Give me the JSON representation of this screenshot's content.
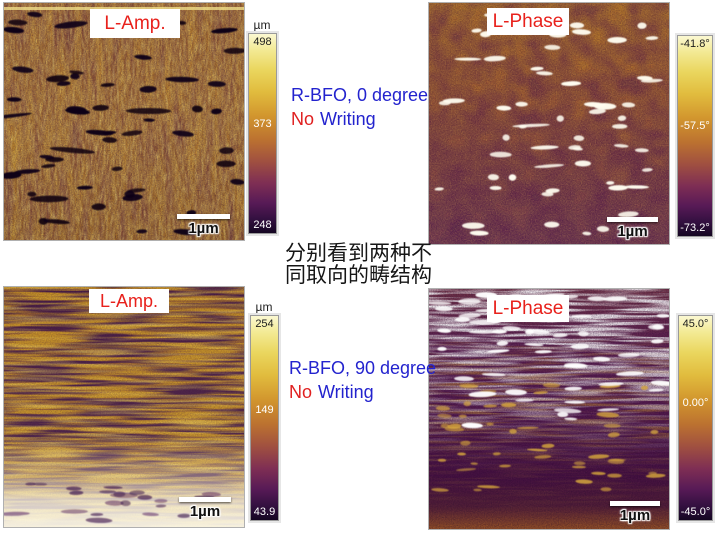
{
  "figure": {
    "background": "#ffffff"
  },
  "colors": {
    "label_red": "#E8211C",
    "annotation_blue": "#2323CE",
    "annotation_red": "#E02020",
    "text_black": "#161616"
  },
  "panels": [
    {
      "label": "L-Amp.",
      "scale_bar": "1µm",
      "colorbar": {
        "unit": "µm",
        "max": "498",
        "mid": "373",
        "min": "248"
      }
    },
    {
      "label": "L-Phase",
      "scale_bar": "1µm",
      "colorbar": {
        "max": "-41.8°",
        "mid": "-57.5°",
        "min": "-73.2°"
      }
    },
    {
      "label": "L-Amp.",
      "scale_bar": "1µm",
      "colorbar": {
        "unit": "µm",
        "max": "254",
        "mid": "149",
        "min": "43.9"
      }
    },
    {
      "label": "L-Phase",
      "scale_bar": "1µm",
      "colorbar": {
        "max": "45.0°",
        "mid": "0.00°",
        "min": "-45.0°"
      }
    }
  ],
  "annotations": {
    "top": {
      "line1": "R-BFO, 0 degree",
      "no": "No",
      "writing": "Writing"
    },
    "center_cn": {
      "line1": "分别看到两种不",
      "line2": "同取向的畴结构"
    },
    "bottom": {
      "line1": "R-BFO, 90 degree",
      "no": "No",
      "writing": "Writing"
    }
  }
}
